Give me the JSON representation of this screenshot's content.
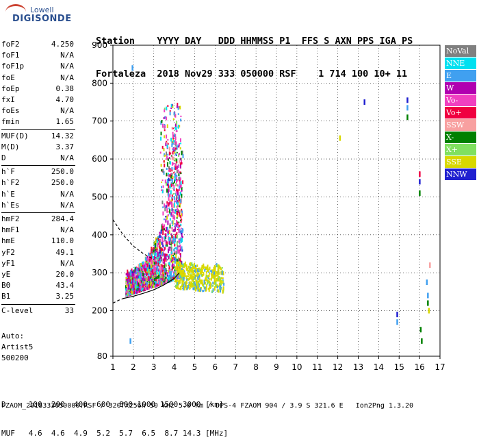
{
  "logo": {
    "line1": "Lowell",
    "line2": "DIGISONDE"
  },
  "header": {
    "line1": "Station    YYYY DAY   DDD HHMMSS P1  FFS S AXN PPS IGA PS",
    "line2": "Fortaleza  2018 Nov29 333 050000 RSF    1 714 100 10+ 11"
  },
  "params": [
    {
      "label": "foF2",
      "value": "4.250"
    },
    {
      "label": "foF1",
      "value": "N/A"
    },
    {
      "label": "foF1p",
      "value": "N/A"
    },
    {
      "label": "foE",
      "value": "N/A"
    },
    {
      "label": "foEp",
      "value": "0.38"
    },
    {
      "label": "fxI",
      "value": "4.70"
    },
    {
      "label": "foEs",
      "value": "N/A"
    },
    {
      "label": "fmin",
      "value": "1.65"
    },
    {
      "label": "MUF(D)",
      "value": "14.32"
    },
    {
      "label": "M(D)",
      "value": "3.37"
    },
    {
      "label": "D",
      "value": "N/A"
    },
    {
      "label": "h`F",
      "value": "250.0"
    },
    {
      "label": "h`F2",
      "value": "250.0"
    },
    {
      "label": "h`E",
      "value": "N/A"
    },
    {
      "label": "h`Es",
      "value": "N/A"
    },
    {
      "label": "hmF2",
      "value": "284.4"
    },
    {
      "label": "hmF1",
      "value": "N/A"
    },
    {
      "label": "hmE",
      "value": "110.0"
    },
    {
      "label": "yF2",
      "value": "49.1"
    },
    {
      "label": "yF1",
      "value": "N/A"
    },
    {
      "label": "yE",
      "value": "20.0"
    },
    {
      "label": "B0",
      "value": "43.4"
    },
    {
      "label": "B1",
      "value": "3.25"
    },
    {
      "label": "C-level",
      "value": "33"
    }
  ],
  "auto": {
    "line1": "Auto:",
    "line2": "Artist5",
    "line3": "500200"
  },
  "muf_table": {
    "d_row": "D     100  200  400  600  800 1000 1500 3000 [km]",
    "muf_row": "MUF   4.6  4.6  4.9  5.2  5.7  6.5  8.7 14.3 [MHz]"
  },
  "footer": "FZAOM_2018333050000.RSF / 320fx256h 50 kHz 5.0 km / DPS-4 FZAOM 904 / 3.9 S 321.6 E   Ion2Png 1.3.20",
  "legend": [
    {
      "label": "NoVal",
      "color": "#808080"
    },
    {
      "label": "NNE",
      "color": "#00e0f0"
    },
    {
      "label": "E",
      "color": "#40a0f0"
    },
    {
      "label": "W",
      "color": "#b000b0"
    },
    {
      "label": "Vo-",
      "color": "#f040c0"
    },
    {
      "label": "Vo+",
      "color": "#f00040"
    },
    {
      "label": "SSW",
      "color": "#f8a0a0"
    },
    {
      "label": "X-",
      "color": "#008000"
    },
    {
      "label": "X+",
      "color": "#80e060"
    },
    {
      "label": "SSE",
      "color": "#d8d800"
    },
    {
      "label": "NNW",
      "color": "#2020d0"
    }
  ],
  "chart_data": {
    "type": "scatter",
    "title": "",
    "xlabel": "",
    "ylabel": "",
    "xlim": [
      1,
      17
    ],
    "ylim": [
      80,
      900
    ],
    "xticks": [
      1,
      2,
      3,
      4,
      5,
      6,
      7,
      8,
      9,
      10,
      11,
      12,
      13,
      14,
      15,
      16,
      17
    ],
    "yticks": [
      80,
      200,
      300,
      400,
      500,
      600,
      700,
      800,
      900
    ],
    "grid": true,
    "clusters": [
      {
        "note": "main F-trace",
        "fmin": 1.6,
        "fmax": 4.4,
        "hmin": 235,
        "hmax": 740
      },
      {
        "note": "spread",
        "fmin": 4.0,
        "fmax": 6.4,
        "hmin": 250,
        "hmax": 330
      }
    ],
    "isolated_points": [
      {
        "x": 1.85,
        "y": 120,
        "color": "#40a0f0"
      },
      {
        "x": 1.95,
        "y": 840,
        "color": "#40a0f0"
      },
      {
        "x": 12.1,
        "y": 655,
        "color": "#d8d800"
      },
      {
        "x": 13.3,
        "y": 750,
        "color": "#2020d0"
      },
      {
        "x": 15.4,
        "y": 755,
        "color": "#2020d0"
      },
      {
        "x": 15.4,
        "y": 735,
        "color": "#40a0f0"
      },
      {
        "x": 15.4,
        "y": 710,
        "color": "#008000"
      },
      {
        "x": 14.9,
        "y": 190,
        "color": "#2020d0"
      },
      {
        "x": 14.9,
        "y": 170,
        "color": "#40a0f0"
      },
      {
        "x": 16.0,
        "y": 560,
        "color": "#f00040"
      },
      {
        "x": 16.0,
        "y": 540,
        "color": "#2020d0"
      },
      {
        "x": 16.0,
        "y": 510,
        "color": "#008000"
      },
      {
        "x": 16.05,
        "y": 150,
        "color": "#008000"
      },
      {
        "x": 16.1,
        "y": 120,
        "color": "#008000"
      },
      {
        "x": 16.35,
        "y": 275,
        "color": "#40a0f0"
      },
      {
        "x": 16.4,
        "y": 240,
        "color": "#40a0f0"
      },
      {
        "x": 16.4,
        "y": 220,
        "color": "#008000"
      },
      {
        "x": 16.45,
        "y": 200,
        "color": "#d8d800"
      },
      {
        "x": 16.5,
        "y": 320,
        "color": "#f8a0a0"
      }
    ],
    "curves": [
      {
        "name": "",
        "x": [
          1.5,
          2.0,
          2.5,
          3.0,
          3.5,
          4.0,
          4.25
        ],
        "y": [
          232,
          238,
          246,
          255,
          268,
          285,
          300
        ]
      },
      {
        "name": "",
        "x": [
          1.0,
          1.5,
          2.0,
          2.5,
          3.0
        ],
        "y": [
          440,
          400,
          370,
          350,
          335
        ]
      },
      {
        "name": "",
        "x": [
          1.0,
          1.3,
          1.6
        ],
        "y": [
          220,
          228,
          234
        ]
      }
    ]
  }
}
